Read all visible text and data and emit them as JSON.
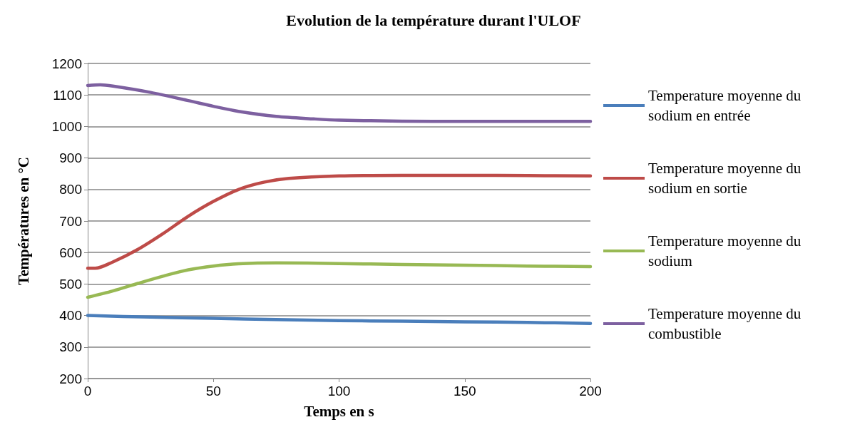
{
  "chart_data": {
    "type": "line",
    "title": "Evolution de la température durant l'ULOF",
    "xlabel": "Temps en s",
    "ylabel": "Températures en °C",
    "xlim": [
      0,
      200
    ],
    "xticks": [
      0,
      50,
      100,
      150,
      200
    ],
    "ylim": [
      200,
      1200
    ],
    "yticks": [
      200,
      300,
      400,
      500,
      600,
      700,
      800,
      900,
      1000,
      1100,
      1200
    ],
    "grid": "y",
    "legend": "right",
    "marker": "none",
    "line_style": "solid",
    "series": [
      {
        "name": "Temperature moyenne du sodium en entrée",
        "color": "#4a7ebb",
        "x": [
          0,
          25,
          50,
          75,
          100,
          125,
          150,
          175,
          200
        ],
        "values": [
          400,
          395,
          391,
          387,
          384,
          382,
          380,
          378,
          375
        ]
      },
      {
        "name": "Temperature moyenne du sodium en sortie",
        "color": "#be4b48",
        "x": [
          0,
          3,
          10,
          20,
          30,
          40,
          50,
          60,
          70,
          80,
          100,
          125,
          150,
          175,
          200
        ],
        "values": [
          550,
          550,
          570,
          610,
          660,
          715,
          762,
          800,
          823,
          835,
          843,
          845,
          845,
          844,
          843
        ]
      },
      {
        "name": "Temperature moyenne du sodium",
        "color": "#98b954",
        "x": [
          0,
          10,
          20,
          30,
          40,
          50,
          60,
          75,
          100,
          125,
          150,
          175,
          200
        ],
        "values": [
          458,
          478,
          502,
          525,
          545,
          557,
          564,
          567,
          565,
          562,
          560,
          557,
          555
        ]
      },
      {
        "name": "Temperature moyenne du combustible",
        "color": "#7d60a0",
        "x": [
          0,
          5,
          10,
          25,
          40,
          50,
          60,
          75,
          90,
          100,
          125,
          150,
          200
        ],
        "values": [
          1130,
          1132,
          1128,
          1108,
          1082,
          1064,
          1048,
          1032,
          1024,
          1020,
          1017,
          1016,
          1016
        ]
      }
    ]
  }
}
